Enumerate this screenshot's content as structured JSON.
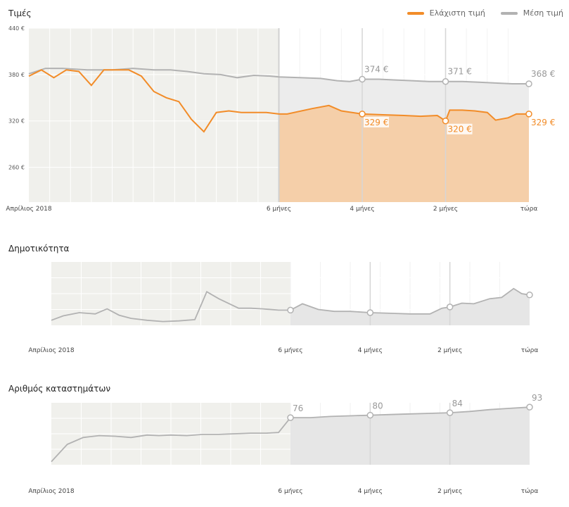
{
  "colors": {
    "accent": "#f28c28",
    "accent_fill": "#f5cfa9",
    "avg_line": "#b2b2b2",
    "gray_fill": "#e6e6e6",
    "history_bg": "#f0f0ec",
    "marker_line": "#d6d6d6"
  },
  "prices": {
    "title": "Τιμές",
    "legend": [
      {
        "label": "Ελάχιστη τιμή",
        "color": "#f28c28",
        "icon": "orange-line-swatch"
      },
      {
        "label": "Μέση τιμή",
        "color": "#b2b2b2",
        "icon": "gray-line-swatch"
      }
    ],
    "markers": [
      {
        "x_label": "4 μήνες",
        "avg_label": "374 €",
        "min_label": "329 €"
      },
      {
        "x_label": "2 μήνες",
        "avg_label": "371 €",
        "min_label": "320 €"
      },
      {
        "x_label": "τώρα",
        "avg_label": "368 €",
        "min_label": "329 €"
      }
    ]
  },
  "popularity": {
    "title": "Δημοτικότητα"
  },
  "stores": {
    "title": "Αριθμός καταστημάτων",
    "markers": [
      {
        "x_label": "6 μήνες",
        "label": "76"
      },
      {
        "x_label": "4 μήνες",
        "label": "80"
      },
      {
        "x_label": "2 μήνες",
        "label": "84"
      },
      {
        "x_label": "τώρα",
        "label": "93"
      }
    ]
  },
  "chart_data": [
    {
      "type": "line",
      "name": "prices",
      "title": "Τιμές",
      "y_ticks": [
        "440 €",
        "380 €",
        "320 €",
        "260 €"
      ],
      "ylim": [
        215,
        440
      ],
      "x_tick_labels": [
        "Απρίλιος 2018",
        "6 μήνες",
        "4 μήνες",
        "2 μήνες",
        "τώρα"
      ],
      "x_range_months_before_now": [
        12,
        0
      ],
      "history_until_months_before_now": 6,
      "series": [
        {
          "name": "Μέση τιμή",
          "x": [
            12.0,
            11.6,
            11.2,
            10.6,
            10.0,
            9.5,
            9.0,
            8.6,
            8.2,
            7.8,
            7.4,
            7.0,
            6.6,
            6.2,
            6.0,
            5.5,
            5.0,
            4.6,
            4.3,
            4.0,
            3.6,
            3.2,
            2.8,
            2.4,
            2.0,
            1.6,
            1.2,
            0.8,
            0.4,
            0.0
          ],
          "values": [
            381,
            388,
            388,
            386,
            386,
            388,
            386,
            386,
            384,
            381,
            380,
            376,
            379,
            378,
            377,
            376,
            375,
            372,
            371,
            374,
            374,
            373,
            372,
            371,
            371,
            371,
            370,
            369,
            368,
            368
          ]
        },
        {
          "name": "Ελάχιστη τιμή",
          "x": [
            12.0,
            11.7,
            11.4,
            11.1,
            10.8,
            10.5,
            10.2,
            9.9,
            9.6,
            9.3,
            9.0,
            8.7,
            8.4,
            8.1,
            7.8,
            7.5,
            7.2,
            6.9,
            6.6,
            6.3,
            6.0,
            5.8,
            5.2,
            4.8,
            4.5,
            4.0,
            3.5,
            3.0,
            2.6,
            2.2,
            2.0,
            1.9,
            1.6,
            1.3,
            1.0,
            0.8,
            0.5,
            0.3,
            0.0
          ],
          "values": [
            378,
            386,
            376,
            386,
            384,
            366,
            386,
            386,
            386,
            378,
            358,
            350,
            345,
            322,
            306,
            331,
            333,
            331,
            331,
            331,
            329,
            329,
            336,
            340,
            333,
            329,
            328,
            327,
            326,
            327,
            320,
            334,
            334,
            333,
            331,
            321,
            324,
            329,
            329
          ]
        }
      ]
    },
    {
      "type": "area",
      "name": "popularity",
      "title": "Δημοτικότητα",
      "x_tick_labels": [
        "Απρίλιος 2018",
        "6 μήνες",
        "4 μήνες",
        "2 μήνες",
        "τώρα"
      ],
      "ylim": [
        0,
        100
      ],
      "x": [
        12.0,
        11.7,
        11.3,
        10.9,
        10.6,
        10.3,
        10.0,
        9.6,
        9.2,
        8.8,
        8.4,
        8.1,
        7.8,
        7.5,
        7.3,
        7.0,
        6.7,
        6.3,
        6.0,
        5.7,
        5.3,
        4.9,
        4.5,
        4.0,
        3.5,
        3.0,
        2.5,
        2.2,
        2.0,
        1.7,
        1.4,
        1.0,
        0.7,
        0.4,
        0.2,
        0.0
      ],
      "values": [
        8,
        15,
        20,
        18,
        26,
        16,
        11,
        8,
        6,
        7,
        9,
        53,
        42,
        33,
        27,
        27,
        26,
        24,
        24,
        34,
        25,
        22,
        22,
        20,
        19,
        18,
        18,
        27,
        29,
        35,
        34,
        42,
        44,
        58,
        50,
        48
      ]
    },
    {
      "type": "area",
      "name": "stores",
      "title": "Αριθμός καταστημάτων",
      "x_tick_labels": [
        "Απρίλιος 2018",
        "6 μήνες",
        "4 μήνες",
        "2 μήνες",
        "τώρα"
      ],
      "ylim": [
        0,
        100
      ],
      "x": [
        12.0,
        11.6,
        11.2,
        10.8,
        10.4,
        10.0,
        9.6,
        9.3,
        9.0,
        8.6,
        8.2,
        7.8,
        7.4,
        7.0,
        6.6,
        6.3,
        6.0,
        5.5,
        5.0,
        4.5,
        4.0,
        3.5,
        3.0,
        2.5,
        2.0,
        1.5,
        1.0,
        0.5,
        0.0
      ],
      "values": [
        5,
        33,
        44,
        47,
        46,
        44,
        48,
        47,
        48,
        47,
        49,
        49,
        50,
        51,
        51,
        52,
        76,
        76,
        78,
        79,
        80,
        81,
        82,
        83,
        84,
        86,
        89,
        91,
        93
      ]
    }
  ]
}
